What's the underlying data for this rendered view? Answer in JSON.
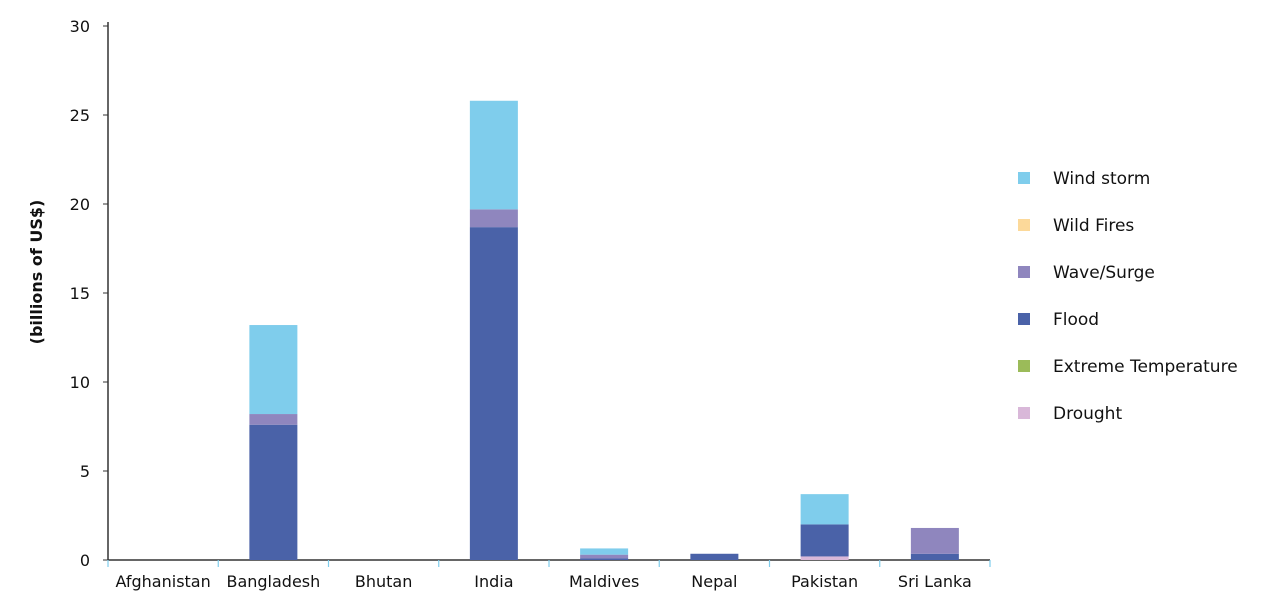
{
  "chart_data": {
    "type": "bar",
    "stacked": true,
    "title": "",
    "xlabel": "",
    "ylabel": "(billions of US$)",
    "ylim": [
      0,
      30
    ],
    "yticks": [
      0,
      5,
      10,
      15,
      20,
      25,
      30
    ],
    "grid": false,
    "legend_position": "right",
    "categories": [
      "Afghanistan",
      "Bangladesh",
      "Bhutan",
      "India",
      "Maldives",
      "Nepal",
      "Pakistan",
      "Sri Lanka"
    ],
    "series": [
      {
        "name": "Drought",
        "color": "#d9b8d9",
        "values": [
          0,
          0,
          0,
          0,
          0,
          0,
          0.2,
          0
        ]
      },
      {
        "name": "Extreme Temperature",
        "color": "#9bbb59",
        "values": [
          0,
          0,
          0,
          0,
          0,
          0,
          0,
          0
        ]
      },
      {
        "name": "Flood",
        "color": "#4a62a8",
        "values": [
          0,
          7.6,
          0,
          18.7,
          0.1,
          0.35,
          1.8,
          0.35
        ]
      },
      {
        "name": "Wave/Surge",
        "color": "#8f86be",
        "values": [
          0,
          0.6,
          0,
          1.0,
          0.2,
          0,
          0,
          1.45
        ]
      },
      {
        "name": "Wild Fires",
        "color": "#fcd99a",
        "values": [
          0,
          0,
          0,
          0,
          0,
          0,
          0,
          0
        ]
      },
      {
        "name": "Wind storm",
        "color": "#7fcdec",
        "values": [
          0,
          5.0,
          0,
          6.1,
          0.35,
          0,
          1.7,
          0
        ]
      }
    ],
    "legend_order": [
      "Wind storm",
      "Wild Fires",
      "Wave/Surge",
      "Flood",
      "Extreme Temperature",
      "Drought"
    ]
  }
}
